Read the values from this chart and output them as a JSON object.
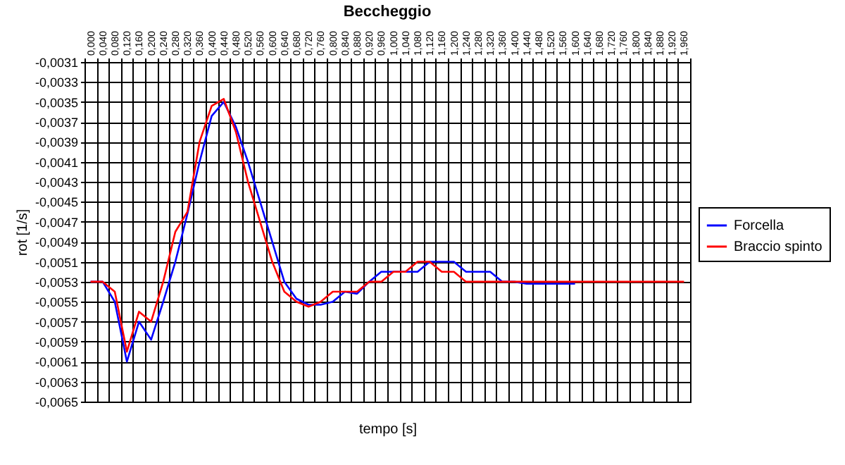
{
  "chart_data": {
    "type": "line",
    "title": "Beccheggio",
    "xlabel": "tempo [s]",
    "ylabel": "rot [1/s]",
    "legend": "right",
    "grid": true,
    "line_style": "solid",
    "marker": "none",
    "categories": [
      "0,000",
      "0,040",
      "0,080",
      "0,120",
      "0,160",
      "0,200",
      "0,240",
      "0,280",
      "0,320",
      "0,360",
      "0,400",
      "0,440",
      "0,480",
      "0,520",
      "0,560",
      "0,600",
      "0,640",
      "0,680",
      "0,720",
      "0,760",
      "0,800",
      "0,840",
      "0,880",
      "0,920",
      "0,960",
      "1,000",
      "1,040",
      "1,080",
      "1,120",
      "1,160",
      "1,200",
      "1,240",
      "1,280",
      "1,320",
      "1,360",
      "1,400",
      "1,440",
      "1,480",
      "1,520",
      "1,560",
      "1,600",
      "1,640",
      "1,680",
      "1,720",
      "1,760",
      "1,800",
      "1,840",
      "1,880",
      "1,920",
      "1,960"
    ],
    "ylim": [
      -0.0065,
      -0.0031
    ],
    "yticks": [
      {
        "value": -0.0065,
        "label": "-0,0065"
      },
      {
        "value": -0.0063,
        "label": "-0,0063"
      },
      {
        "value": -0.0061,
        "label": "-0,0061"
      },
      {
        "value": -0.0059,
        "label": "-0,0059"
      },
      {
        "value": -0.0057,
        "label": "-0,0057"
      },
      {
        "value": -0.0055,
        "label": "-0,0055"
      },
      {
        "value": -0.0053,
        "label": "-0,0053"
      },
      {
        "value": -0.0051,
        "label": "-0,0051"
      },
      {
        "value": -0.0049,
        "label": "-0,0049"
      },
      {
        "value": -0.0047,
        "label": "-0,0047"
      },
      {
        "value": -0.0045,
        "label": "-0,0045"
      },
      {
        "value": -0.0043,
        "label": "-0,0043"
      },
      {
        "value": -0.0041,
        "label": "-0,0041"
      },
      {
        "value": -0.0039,
        "label": "-0,0039"
      },
      {
        "value": -0.0037,
        "label": "-0,0037"
      },
      {
        "value": -0.0035,
        "label": "-0,0035"
      },
      {
        "value": -0.0033,
        "label": "-0,0033"
      },
      {
        "value": -0.0031,
        "label": "-0,0031"
      }
    ],
    "series": [
      {
        "name": "Forcella",
        "color": "#0000ff",
        "values": [
          -0.0053,
          -0.0053,
          -0.0055,
          -0.0061,
          -0.0057,
          -0.00588,
          -0.0055,
          -0.0051,
          -0.00462,
          -0.0041,
          -0.00364,
          -0.0035,
          -0.00375,
          -0.0041,
          -0.0045,
          -0.0049,
          -0.0053,
          -0.00547,
          -0.00553,
          -0.00553,
          -0.0055,
          -0.0054,
          -0.00542,
          -0.0053,
          -0.0052,
          -0.0052,
          -0.0052,
          -0.0052,
          -0.0051,
          -0.0051,
          -0.0051,
          -0.0052,
          -0.0052,
          -0.0052,
          -0.0053,
          -0.0053,
          -0.00532,
          -0.00532,
          -0.00532,
          -0.00532,
          -0.00532,
          null,
          null,
          null,
          null,
          null,
          null,
          null,
          null,
          null
        ]
      },
      {
        "name": "Braccio spinto",
        "color": "#ff0000",
        "values": [
          -0.0053,
          -0.0053,
          -0.0054,
          -0.006,
          -0.0056,
          -0.0057,
          -0.0053,
          -0.0048,
          -0.0046,
          -0.0039,
          -0.00354,
          -0.00347,
          -0.0038,
          -0.0043,
          -0.0047,
          -0.0051,
          -0.0054,
          -0.0055,
          -0.00555,
          -0.0055,
          -0.0054,
          -0.0054,
          -0.0054,
          -0.0053,
          -0.0053,
          -0.0052,
          -0.0052,
          -0.0051,
          -0.0051,
          -0.0052,
          -0.0052,
          -0.0053,
          -0.0053,
          -0.0053,
          -0.0053,
          -0.0053,
          -0.0053,
          -0.0053,
          -0.0053,
          -0.0053,
          -0.0053,
          -0.0053,
          -0.0053,
          -0.0053,
          -0.0053,
          -0.0053,
          -0.0053,
          -0.0053,
          -0.0053,
          -0.0053
        ]
      }
    ]
  }
}
